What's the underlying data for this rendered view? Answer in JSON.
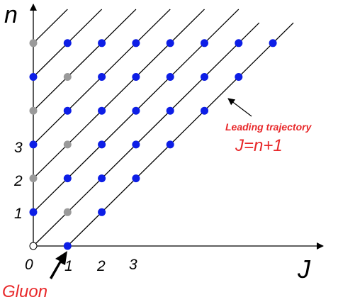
{
  "axes": {
    "x_label": "J",
    "y_label": "n",
    "x_ticks": [
      "0",
      "1",
      "2",
      "3"
    ],
    "y_ticks": [
      "1",
      "2",
      "3"
    ]
  },
  "annotations": {
    "leading_label": "Leading trajectory",
    "leading_formula": "J=n+1",
    "gluon": "Gluon"
  }
}
